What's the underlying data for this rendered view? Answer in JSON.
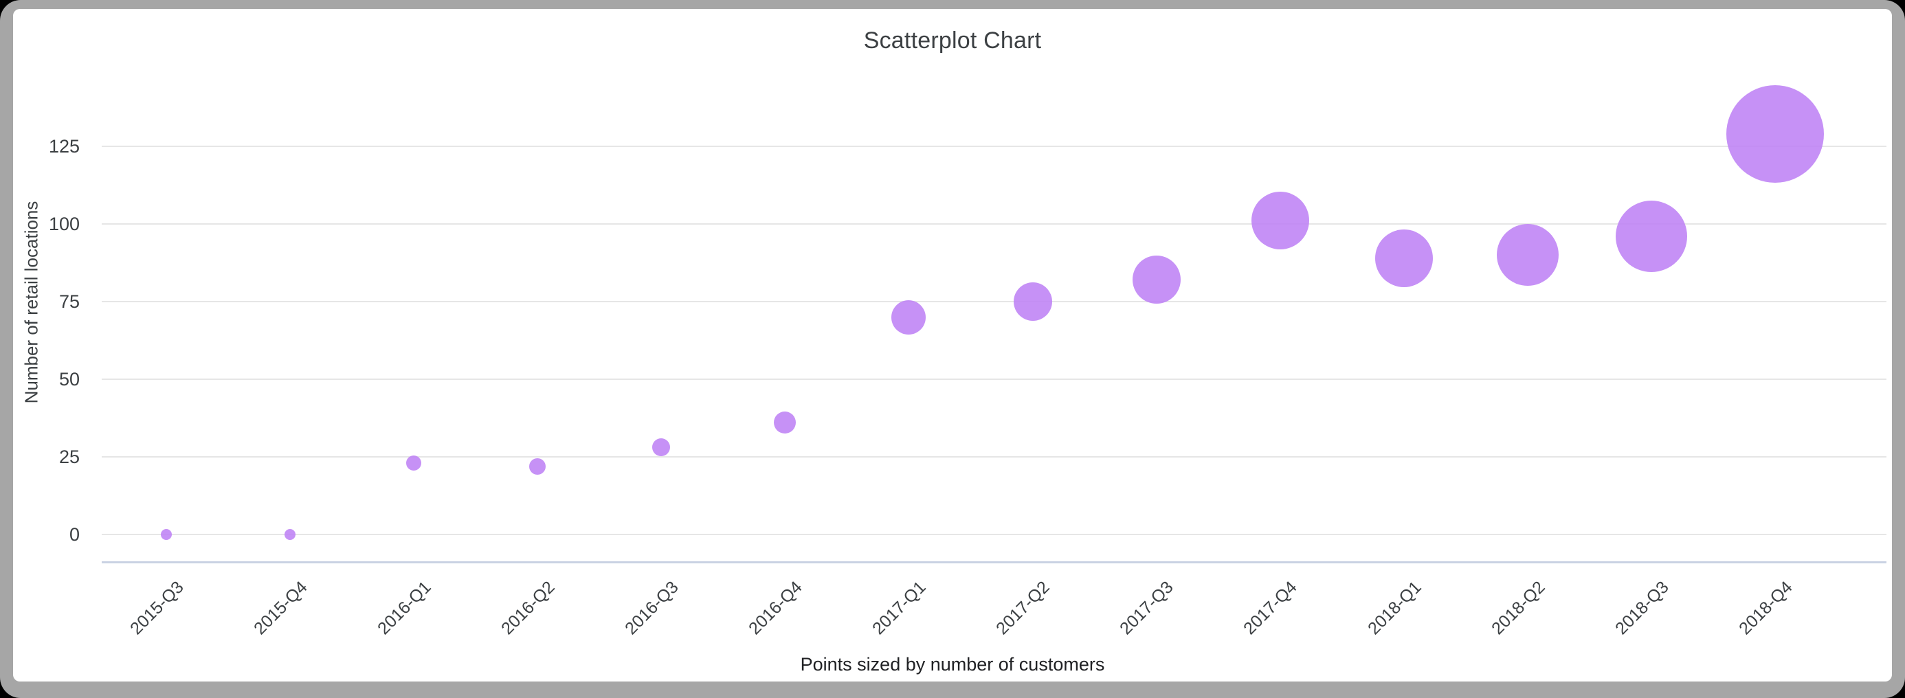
{
  "title": "Scatterplot Chart",
  "y_axis": {
    "label": "Number of retail locations",
    "ticks": [
      "0",
      "25",
      "50",
      "75",
      "100",
      "125"
    ]
  },
  "x_axis": {
    "caption": "Points sized by number of customers"
  },
  "colors": {
    "point": "#c58af9",
    "point_rgba": "rgba(190,130,245,0.88)",
    "gridline": "#e6e6e6",
    "baseline": "#c9d2e3",
    "text": "#3c4043",
    "frame": "#a6a6a6",
    "card": "#ffffff",
    "outer_background": "#000000"
  },
  "chart_data": {
    "type": "scatter",
    "title": "Scatterplot Chart",
    "xlabel": "Points sized by number of customers",
    "ylabel": "Number of retail locations",
    "categories": [
      "2015-Q3",
      "2015-Q4",
      "2016-Q1",
      "2016-Q2",
      "2016-Q3",
      "2016-Q4",
      "2017-Q1",
      "2017-Q2",
      "2017-Q3",
      "2017-Q4",
      "2018-Q1",
      "2018-Q2",
      "2018-Q3",
      "2018-Q4"
    ],
    "values": [
      0,
      0,
      23,
      22,
      28,
      36,
      70,
      75,
      82,
      101,
      89,
      90,
      96,
      129
    ],
    "point_radius_px": [
      8,
      8,
      11,
      12,
      13,
      16,
      25,
      28,
      35,
      42,
      42,
      45,
      52,
      71
    ],
    "size_meaning": "points sized by number of customers (relative radii in px)",
    "yticks": [
      0,
      25,
      50,
      75,
      100,
      125
    ],
    "ylim": [
      0,
      135
    ],
    "grid": true,
    "legend": false,
    "point_color": "#c58af9"
  }
}
